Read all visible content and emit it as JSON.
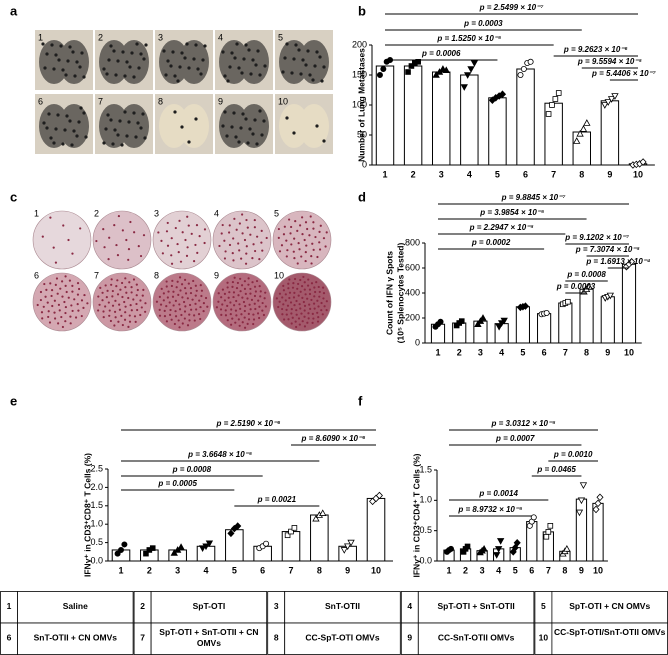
{
  "panel_labels": [
    "a",
    "b",
    "c",
    "d",
    "e",
    "f"
  ],
  "photos_a": {
    "labels": [
      "1",
      "2",
      "3",
      "4",
      "5",
      "6",
      "7",
      "8",
      "9",
      "10"
    ]
  },
  "photos_c": {
    "labels": [
      "1",
      "2",
      "3",
      "4",
      "5",
      "6",
      "7",
      "8",
      "9",
      "10"
    ]
  },
  "chart_data": [
    {
      "type": "bar",
      "ylabel": [
        "Number of Lung Metastases"
      ],
      "categories": [
        "1",
        "2",
        "3",
        "4",
        "5",
        "6",
        "7",
        "8",
        "9",
        "10"
      ],
      "values": [
        165,
        165,
        155,
        150,
        112,
        160,
        103,
        55,
        107,
        2
      ],
      "points": [
        [
          150,
          160,
          172,
          175
        ],
        [
          155,
          165,
          170,
          172
        ],
        [
          150,
          155,
          160,
          158
        ],
        [
          130,
          150,
          160,
          170
        ],
        [
          108,
          112,
          115,
          118
        ],
        [
          150,
          160,
          170,
          172
        ],
        [
          85,
          100,
          110,
          120
        ],
        [
          40,
          52,
          60,
          70
        ],
        [
          100,
          105,
          110,
          115
        ],
        [
          0,
          1,
          2,
          5
        ]
      ],
      "ylim": [
        0,
        200
      ],
      "yticks": [
        0,
        50,
        100,
        150,
        200
      ],
      "comparisons": [
        {
          "groups": [
            "1",
            "10"
          ],
          "label": "p = 2.5499 × 10⁻⁷"
        },
        {
          "groups": [
            "1",
            "8"
          ],
          "label": "p = 0.0003"
        },
        {
          "groups": [
            "1",
            "7"
          ],
          "label": "p = 1.5250 × 10⁻⁵"
        },
        {
          "groups": [
            "1",
            "5"
          ],
          "label": "p = 0.0006"
        },
        {
          "groups": [
            "7",
            "10"
          ],
          "label": "p = 9.2623 × 10⁻⁶"
        },
        {
          "groups": [
            "8",
            "10"
          ],
          "label": "p = 9.5594 × 10⁻⁵"
        },
        {
          "groups": [
            "9",
            "10"
          ],
          "label": "p = 5.4406 × 10⁻⁷"
        }
      ]
    },
    {
      "type": "bar",
      "ylabel": [
        "Count of IFN γ Spots",
        "(10⁵ Splenocytes Tested)"
      ],
      "categories": [
        "1",
        "2",
        "3",
        "4",
        "5",
        "6",
        "7",
        "8",
        "9",
        "10"
      ],
      "values": [
        150,
        160,
        175,
        155,
        290,
        235,
        320,
        430,
        370,
        630
      ],
      "points": [
        [
          130,
          150,
          170
        ],
        [
          140,
          160,
          175
        ],
        [
          150,
          175,
          200
        ],
        [
          130,
          160,
          180
        ],
        [
          285,
          290,
          295
        ],
        [
          230,
          235,
          240
        ],
        [
          310,
          320,
          330
        ],
        [
          410,
          430,
          450
        ],
        [
          360,
          370,
          380
        ],
        [
          610,
          630,
          650
        ]
      ],
      "ylim": [
        0,
        800
      ],
      "yticks": [
        0,
        200,
        400,
        600,
        800
      ],
      "comparisons": [
        {
          "groups": [
            "1",
            "10"
          ],
          "label": "p = 9.8845 × 10⁻⁷"
        },
        {
          "groups": [
            "1",
            "8"
          ],
          "label": "p = 3.9854 × 10⁻⁵"
        },
        {
          "groups": [
            "1",
            "7"
          ],
          "label": "p = 2.2947 × 10⁻⁵"
        },
        {
          "groups": [
            "1",
            "6"
          ],
          "label": "p = 0.0002"
        },
        {
          "groups": [
            "7",
            "10"
          ],
          "label": "p = 9.1202 × 10⁻⁷"
        },
        {
          "groups": [
            "8",
            "10"
          ],
          "label": "p = 7.3074 × 10⁻⁵"
        },
        {
          "groups": [
            "9",
            "10"
          ],
          "label": "p = 1.6913 × 10⁻⁴"
        },
        {
          "groups": [
            "7",
            "9"
          ],
          "label": "p = 0.0008"
        },
        {
          "groups": [
            "7",
            "8"
          ],
          "label": "p = 0.0003"
        }
      ]
    },
    {
      "type": "bar",
      "ylabel": [
        "IFNγ⁺ in CD3⁺CD8⁺ T Cells (%)"
      ],
      "categories": [
        "1",
        "2",
        "3",
        "4",
        "5",
        "6",
        "7",
        "8",
        "9",
        "10"
      ],
      "values": [
        0.3,
        0.3,
        0.3,
        0.4,
        0.85,
        0.4,
        0.8,
        1.25,
        0.4,
        1.7
      ],
      "points": [
        [
          0.2,
          0.3,
          0.45
        ],
        [
          0.2,
          0.3,
          0.35
        ],
        [
          0.22,
          0.3,
          0.38
        ],
        [
          0.35,
          0.4,
          0.48
        ],
        [
          0.75,
          0.88,
          0.95
        ],
        [
          0.35,
          0.4,
          0.47
        ],
        [
          0.7,
          0.8,
          0.9
        ],
        [
          1.15,
          1.25,
          1.3
        ],
        [
          0.3,
          0.4,
          0.5
        ],
        [
          1.62,
          1.7,
          1.78
        ]
      ],
      "ylim": [
        0,
        2.5
      ],
      "yticks": [
        {
          "value": 0,
          "label": "0.0"
        },
        0.5,
        {
          "value": 1,
          "label": "1.0"
        },
        1.5,
        {
          "value": 2,
          "label": "2.0"
        },
        2.5
      ],
      "comparisons": [
        {
          "groups": [
            "1",
            "10"
          ],
          "label": "p = 2.5190 × 10⁻⁶"
        },
        {
          "groups": [
            "7",
            "10"
          ],
          "label": "p = 8.6090 × 10⁻⁶"
        },
        {
          "groups": [
            "1",
            "8"
          ],
          "label": "p = 3.6648 × 10⁻⁵"
        },
        {
          "groups": [
            "1",
            "6"
          ],
          "label": "p = 0.0008"
        },
        {
          "groups": [
            "1",
            "5"
          ],
          "label": "p = 0.0005"
        },
        {
          "groups": [
            "5",
            "8"
          ],
          "label": "p = 0.0021"
        }
      ]
    },
    {
      "type": "bar",
      "ylabel": [
        "IFNγ⁺ in CD3⁺CD4⁺ T Cells (%)"
      ],
      "categories": [
        "1",
        "2",
        "3",
        "4",
        "5",
        "6",
        "7",
        "8",
        "9",
        "10"
      ],
      "values": [
        0.18,
        0.2,
        0.17,
        0.2,
        0.22,
        0.65,
        0.48,
        0.16,
        1.02,
        0.95
      ],
      "points": [
        [
          0.15,
          0.18,
          0.2
        ],
        [
          0.15,
          0.2,
          0.24
        ],
        [
          0.14,
          0.17,
          0.2
        ],
        [
          0.1,
          0.2,
          0.33
        ],
        [
          0.15,
          0.22,
          0.3
        ],
        [
          0.58,
          0.65,
          0.72
        ],
        [
          0.4,
          0.48,
          0.58
        ],
        [
          0.12,
          0.16,
          0.2
        ],
        [
          0.8,
          1.0,
          1.25
        ],
        [
          0.85,
          0.95,
          1.05
        ]
      ],
      "ylim": [
        0,
        1.5
      ],
      "yticks": [
        {
          "value": 0,
          "label": "0.0"
        },
        0.5,
        {
          "value": 1,
          "label": "1.0"
        },
        1.5
      ],
      "comparisons": [
        {
          "groups": [
            "1",
            "10"
          ],
          "label": "p = 3.0312 × 10⁻⁵"
        },
        {
          "groups": [
            "1",
            "9"
          ],
          "label": "p = 0.0007"
        },
        {
          "groups": [
            "7",
            "10"
          ],
          "label": "p = 0.0010"
        },
        {
          "groups": [
            "6",
            "9"
          ],
          "label": "p = 0.0465"
        },
        {
          "groups": [
            "1",
            "7"
          ],
          "label": "p = 0.0014"
        },
        {
          "groups": [
            "1",
            "6"
          ],
          "label": "p = 8.9732 × 10⁻⁵"
        }
      ]
    }
  ],
  "table": {
    "rows": [
      [
        [
          "1",
          "Saline"
        ],
        [
          "2",
          "SpT-OTI"
        ],
        [
          "3",
          "SnT-OTII"
        ],
        [
          "4",
          "SpT-OTI + SnT-OTII"
        ],
        [
          "5",
          "SpT-OTI + CN OMVs"
        ]
      ],
      [
        [
          "6",
          "SnT-OTII + CN OMVs"
        ],
        [
          "7",
          "SpT-OTI + SnT-OTII + CN OMVs"
        ],
        [
          "8",
          "CC-SpT-OTI OMVs"
        ],
        [
          "9",
          "CC-SnT-OTII OMVs"
        ],
        [
          "10",
          "CC-SpT-OTI/SnT-OTII OMVs"
        ]
      ]
    ]
  }
}
